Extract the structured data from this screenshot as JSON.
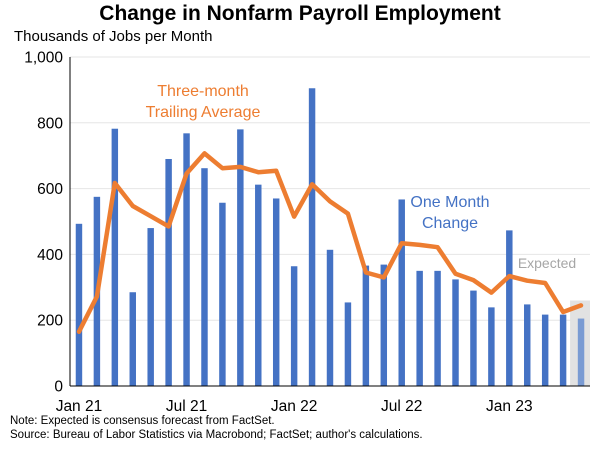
{
  "colors": {
    "bars": "#4472C4",
    "line": "#ED7D31",
    "expected_bar": "#7A9BD3",
    "expected_shade": "#E2E2E2",
    "expected_label": "#A6A6A6",
    "grid": "#E6E6E6",
    "axis": "#000000"
  },
  "chart_data": {
    "type": "bar",
    "title": "Change in Nonfarm Payroll Employment",
    "subtitle": "Thousands of Jobs per Month",
    "xlabel": "",
    "ylabel": "",
    "ylim": [
      0,
      1000
    ],
    "yticks": [
      "0",
      "200",
      "400",
      "600",
      "800",
      "1,000"
    ],
    "grid": true,
    "x_tick_labels": [
      "Jan 21",
      "Jul 21",
      "Jan 22",
      "Jul 22",
      "Jan 23"
    ],
    "categories": [
      "Jan 21",
      "Feb 21",
      "Mar 21",
      "Apr 21",
      "May 21",
      "Jun 21",
      "Jul 21",
      "Aug 21",
      "Sep 21",
      "Oct 21",
      "Nov 21",
      "Dec 21",
      "Jan 22",
      "Feb 22",
      "Mar 22",
      "Apr 22",
      "May 22",
      "Jun 22",
      "Jul 22",
      "Aug 22",
      "Sep 22",
      "Oct 22",
      "Nov 22",
      "Dec 22",
      "Jan 23",
      "Feb 23",
      "Mar 23",
      "Apr 23",
      "May 23"
    ],
    "series": [
      {
        "name": "One Month Change",
        "type": "bar",
        "values": [
          493,
          575,
          782,
          285,
          480,
          690,
          768,
          662,
          557,
          780,
          612,
          570,
          364,
          905,
          414,
          254,
          366,
          369,
          567,
          350,
          350,
          324,
          290,
          239,
          473,
          248,
          217,
          217,
          303
        ]
      },
      {
        "name": "Three-month Trailing Average",
        "type": "line",
        "values": [
          165,
          272,
          617,
          547,
          516,
          485,
          646,
          707,
          662,
          666,
          650,
          654,
          515,
          613,
          561,
          524,
          345,
          330,
          434,
          429,
          422,
          341,
          322,
          284,
          334,
          320,
          313,
          225,
          245
        ]
      }
    ],
    "expected": {
      "label": "Expected",
      "value": 205
    },
    "annotations": {
      "line_label": [
        "Three-month",
        "Trailing Average"
      ],
      "bar_label": [
        "One Month",
        "Change"
      ]
    },
    "notes": [
      "Note: Expected is consensus forecast from FactSet.",
      "Source: Bureau of Labor Statistics via Macrobond; FactSet; author's calculations."
    ]
  }
}
